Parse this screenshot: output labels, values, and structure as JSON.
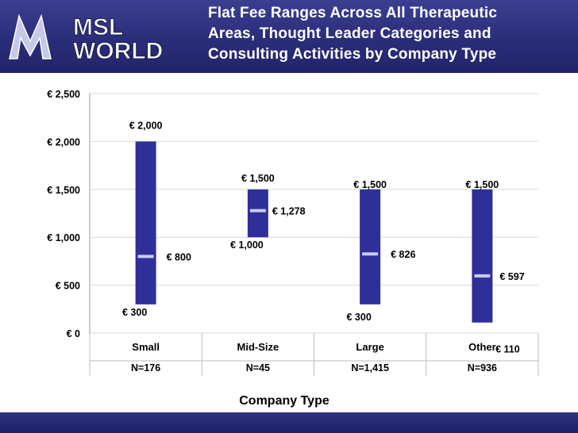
{
  "header": {
    "logo_text_top": "MSL",
    "logo_text_bottom": "WORLD",
    "title_lines": [
      "Flat Fee Ranges Across All Therapeutic",
      "Areas, Thought Leader Categories and",
      "Consulting Activities by Company Type"
    ]
  },
  "colors": {
    "header_bg": "#2a2d78",
    "bar": "#2f2f9a",
    "median_marker": "#c8cdf0",
    "grid": "#d9d9d9"
  },
  "chart_data": {
    "type": "range-bar",
    "xlabel": "Company Type",
    "ylabel": "",
    "yticks": [
      "€ 0",
      "€ 500",
      "€ 1,000",
      "€ 1,500",
      "€ 2,000",
      "€ 2,500"
    ],
    "ylim": [
      0,
      2500
    ],
    "grid": true,
    "categories": [
      "Small",
      "Mid-Size",
      "Large",
      "Other"
    ],
    "sample_sizes": [
      "N=176",
      "N=45",
      "N=1,415",
      "N=936"
    ],
    "low": [
      300,
      1000,
      300,
      110
    ],
    "high": [
      2000,
      1500,
      1500,
      1500
    ],
    "median": [
      800,
      1278,
      826,
      597
    ],
    "low_labels": [
      "€ 300",
      "€ 1,000",
      "€ 300",
      "€ 110"
    ],
    "high_labels": [
      "€ 2,000",
      "€ 1,500",
      "€ 1,500",
      "€ 1,500"
    ],
    "median_labels": [
      "€ 800",
      "€ 1,278",
      "€ 826",
      "€ 597"
    ]
  }
}
